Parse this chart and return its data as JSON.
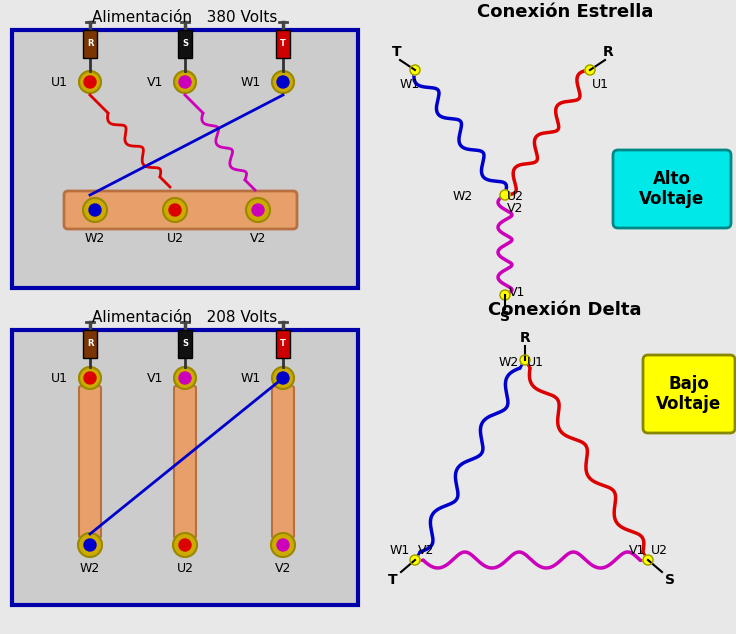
{
  "bg_color": "#e8e8e8",
  "title_380": "Alimentación   380 Volts",
  "title_208": "Alimentación   208 Volts",
  "title_estrella": "Conexión Estrella",
  "title_delta": "Conexión Delta",
  "alto_voltaje": "Alto\nVoltaje",
  "bajo_voltaje": "Bajo\nVoltaje",
  "colors": {
    "red": "#dd0000",
    "blue": "#0000cc",
    "magenta": "#cc00bb",
    "panel_bg": "#cccccc",
    "bus_bar": "#e8a06a",
    "terminal_gold": "#ccaa00",
    "terminal_gold_dark": "#998800",
    "connector_brown": "#7B3503",
    "connector_black": "#111111",
    "connector_red": "#cc0000",
    "panel_border": "#0000aa",
    "cyan": "#00e8e8",
    "yellow": "#ffff00"
  }
}
